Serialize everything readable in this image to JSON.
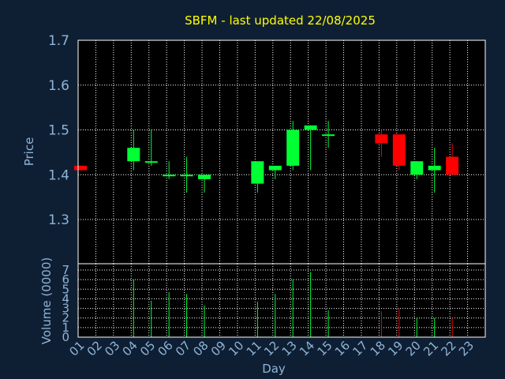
{
  "chart_data": {
    "type": "candlestick",
    "title": "SBFM - last updated 22/08/2025",
    "xlabel": "Day",
    "price_panel": {
      "ylabel": "Price",
      "ylim": [
        1.3,
        1.7
      ],
      "yticks": [
        "1.3",
        "1.4",
        "1.5",
        "1.6",
        "1.7"
      ],
      "grid": true
    },
    "volume_panel": {
      "ylabel": "Volume (0000)",
      "ylim": [
        0,
        7
      ],
      "yticks": [
        "0",
        "1",
        "2",
        "3",
        "4",
        "5",
        "6",
        "7"
      ],
      "grid": true
    },
    "x_ticks": [
      "01",
      "02",
      "03",
      "04",
      "05",
      "06",
      "07",
      "08",
      "09",
      "10",
      "11",
      "12",
      "13",
      "14",
      "15",
      "16",
      "17",
      "18",
      "19",
      "20",
      "21",
      "22",
      "23"
    ],
    "colors": {
      "up": "#00ff33",
      "down": "#ff0000",
      "axis_text": "#8fb4d8",
      "title": "#ffff00",
      "background": "#0f1f33"
    },
    "candles": [
      {
        "day": "01",
        "open": 1.42,
        "high": 1.42,
        "low": 1.41,
        "close": 1.41,
        "volume": 0
      },
      {
        "day": "04",
        "open": 1.43,
        "high": 1.5,
        "low": 1.41,
        "close": 1.46,
        "volume": 6.0
      },
      {
        "day": "05",
        "open": 1.43,
        "high": 1.5,
        "low": 1.42,
        "close": 1.43,
        "volume": 3.8
      },
      {
        "day": "06",
        "open": 1.4,
        "high": 1.43,
        "low": 1.39,
        "close": 1.4,
        "volume": 4.7
      },
      {
        "day": "07",
        "open": 1.4,
        "high": 1.44,
        "low": 1.36,
        "close": 1.4,
        "volume": 4.5
      },
      {
        "day": "08",
        "open": 1.39,
        "high": 1.4,
        "low": 1.36,
        "close": 1.4,
        "volume": 3.3
      },
      {
        "day": "11",
        "open": 1.38,
        "high": 1.43,
        "low": 1.36,
        "close": 1.43,
        "volume": 3.7
      },
      {
        "day": "12",
        "open": 1.41,
        "high": 1.42,
        "low": 1.39,
        "close": 1.42,
        "volume": 4.5
      },
      {
        "day": "13",
        "open": 1.42,
        "high": 1.52,
        "low": 1.41,
        "close": 1.5,
        "volume": 6.0
      },
      {
        "day": "14",
        "open": 1.5,
        "high": 1.51,
        "low": 1.41,
        "close": 1.51,
        "volume": 6.8
      },
      {
        "day": "15",
        "open": 1.49,
        "high": 1.52,
        "low": 1.46,
        "close": 1.49,
        "volume": 2.8
      },
      {
        "day": "18",
        "open": 1.49,
        "high": 1.5,
        "low": 1.44,
        "close": 1.47,
        "volume": 2.7
      },
      {
        "day": "19",
        "open": 1.49,
        "high": 1.49,
        "low": 1.41,
        "close": 1.42,
        "volume": 3.0
      },
      {
        "day": "20",
        "open": 1.4,
        "high": 1.43,
        "low": 1.39,
        "close": 1.43,
        "volume": 2.0
      },
      {
        "day": "21",
        "open": 1.41,
        "high": 1.46,
        "low": 1.36,
        "close": 1.42,
        "volume": 2.0
      },
      {
        "day": "22",
        "open": 1.44,
        "high": 1.47,
        "low": 1.4,
        "close": 1.4,
        "volume": 2.0
      }
    ]
  }
}
